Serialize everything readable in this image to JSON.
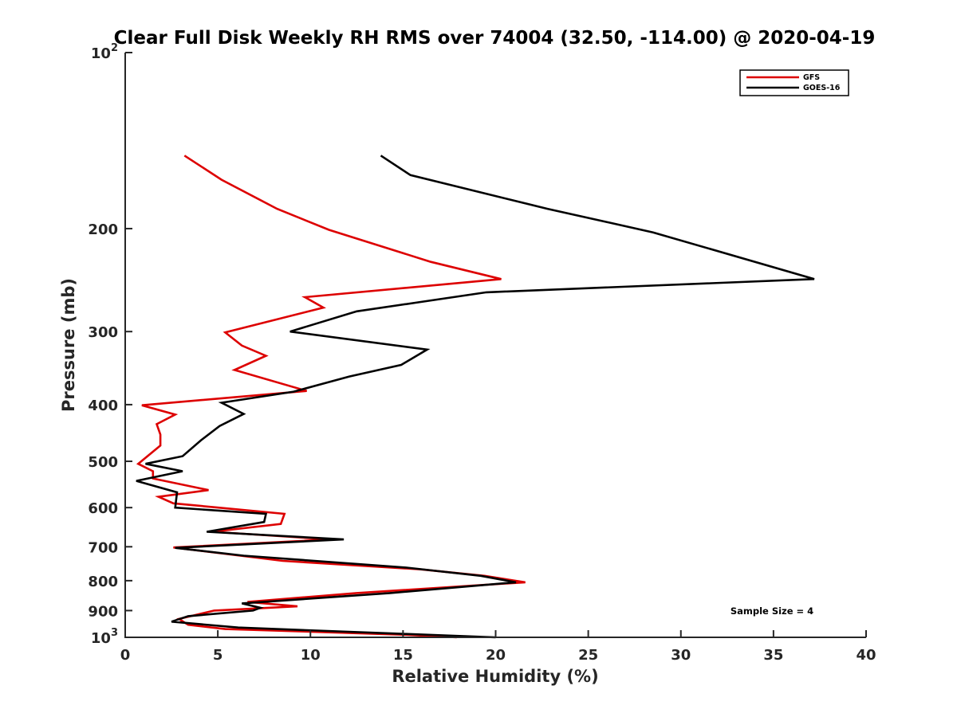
{
  "chart_data": {
    "type": "line",
    "title": "Clear Full Disk Weekly RH RMS over 74004 (32.50, -114.00) @ 2020-04-19",
    "xlabel": "Relative Humidity (%)",
    "ylabel": "Pressure (mb)",
    "xlim": [
      0,
      40
    ],
    "ylim": [
      100,
      1000
    ],
    "yscale": "log",
    "y_reversed": true,
    "xticks": [
      0,
      5,
      10,
      15,
      20,
      25,
      30,
      35,
      40
    ],
    "xtick_labels": [
      "0",
      "5",
      "10",
      "15",
      "20",
      "25",
      "30",
      "35",
      "40"
    ],
    "yticks": [
      100,
      200,
      300,
      400,
      500,
      600,
      700,
      800,
      900,
      1000
    ],
    "ytick_labels": [
      {
        "base": "10",
        "exp": "2"
      },
      {
        "base": "200",
        "exp": ""
      },
      {
        "base": "300",
        "exp": ""
      },
      {
        "base": "400",
        "exp": ""
      },
      {
        "base": "500",
        "exp": ""
      },
      {
        "base": "600",
        "exp": ""
      },
      {
        "base": "700",
        "exp": ""
      },
      {
        "base": "800",
        "exp": ""
      },
      {
        "base": "900",
        "exp": ""
      },
      {
        "base": "10",
        "exp": "3"
      }
    ],
    "legend_position": "top-right",
    "annotation": "Sample Size = 4",
    "series": [
      {
        "name": "GFS",
        "color": "#dd0000",
        "x": [
          3.2,
          5.2,
          8.2,
          11.0,
          16.5,
          20.3,
          9.7,
          10.7,
          5.4,
          6.3,
          7.6,
          5.9,
          9.8,
          0.9,
          2.7,
          1.7,
          1.9,
          1.9,
          0.7,
          1.5,
          1.5,
          4.5,
          1.8,
          2.6,
          8.6,
          8.4,
          4.7,
          11.1,
          2.6,
          8.5,
          15.9,
          19.4,
          21.6,
          12.5,
          6.6,
          9.3,
          4.8,
          2.9,
          3.4,
          5.4,
          15.2,
          17.9
        ],
        "y": [
          150,
          165,
          185,
          201,
          228,
          244,
          262,
          273,
          301,
          317,
          330,
          349,
          379,
          401,
          416,
          432,
          450,
          470,
          505,
          520,
          535,
          560,
          575,
          590,
          615,
          640,
          660,
          680,
          702,
          740,
          765,
          785,
          805,
          840,
          870,
          885,
          900,
          930,
          952,
          968,
          990,
          1000
        ]
      },
      {
        "name": "GOES-16",
        "color": "#000000",
        "x": [
          13.8,
          15.4,
          22.8,
          28.5,
          37.2,
          19.5,
          12.5,
          8.9,
          16.3,
          14.9,
          12.1,
          9.1,
          5.2,
          6.4,
          5.1,
          4.1,
          3.1,
          1.1,
          3.1,
          0.6,
          2.8,
          2.7,
          7.6,
          7.5,
          4.4,
          11.8,
          2.7,
          6.4,
          15.2,
          19.2,
          21.1,
          14.3,
          6.3,
          7.3,
          6.9,
          3.4,
          2.5,
          6.1,
          14.5,
          20.0
        ],
        "y": [
          150,
          162,
          185,
          203,
          244,
          257,
          277,
          300,
          322,
          342,
          358,
          380,
          397,
          415,
          435,
          460,
          490,
          505,
          520,
          540,
          565,
          600,
          615,
          635,
          660,
          680,
          703,
          725,
          760,
          785,
          805,
          840,
          875,
          890,
          900,
          920,
          940,
          962,
          985,
          1000
        ]
      }
    ]
  }
}
